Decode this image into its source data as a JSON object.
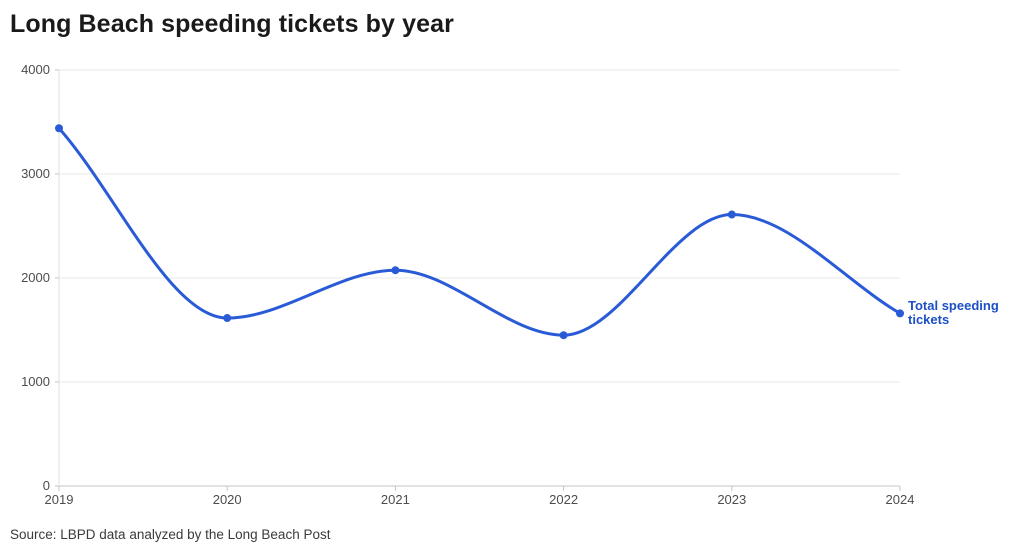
{
  "header": {
    "title": "Long Beach speeding tickets by year"
  },
  "chart_data": {
    "type": "line",
    "title": "Long Beach speeding tickets by year",
    "x": [
      "2019",
      "2020",
      "2021",
      "2022",
      "2023",
      "2024"
    ],
    "series": [
      {
        "name": "Total speeding tickets",
        "values": [
          3440,
          1615,
          2075,
          1450,
          2610,
          1660
        ]
      }
    ],
    "series_label": "Total speeding tickets",
    "ylim": [
      0,
      4000
    ],
    "yticks": [
      0,
      1000,
      2000,
      3000,
      4000
    ],
    "grid": true,
    "legend_position": "end-of-line",
    "line_color": "#2a5bd7",
    "point_color": "#2a5bd7",
    "label_color": "#1d50c8",
    "gridline_color": "#e9e9e9",
    "baseline_color": "#c6c6c6",
    "axisline_color": "#e2e2e2",
    "tick_text_color": "#4d4d4d"
  },
  "footer": {
    "source": "Source: LBPD data analyzed by the Long Beach Post"
  }
}
